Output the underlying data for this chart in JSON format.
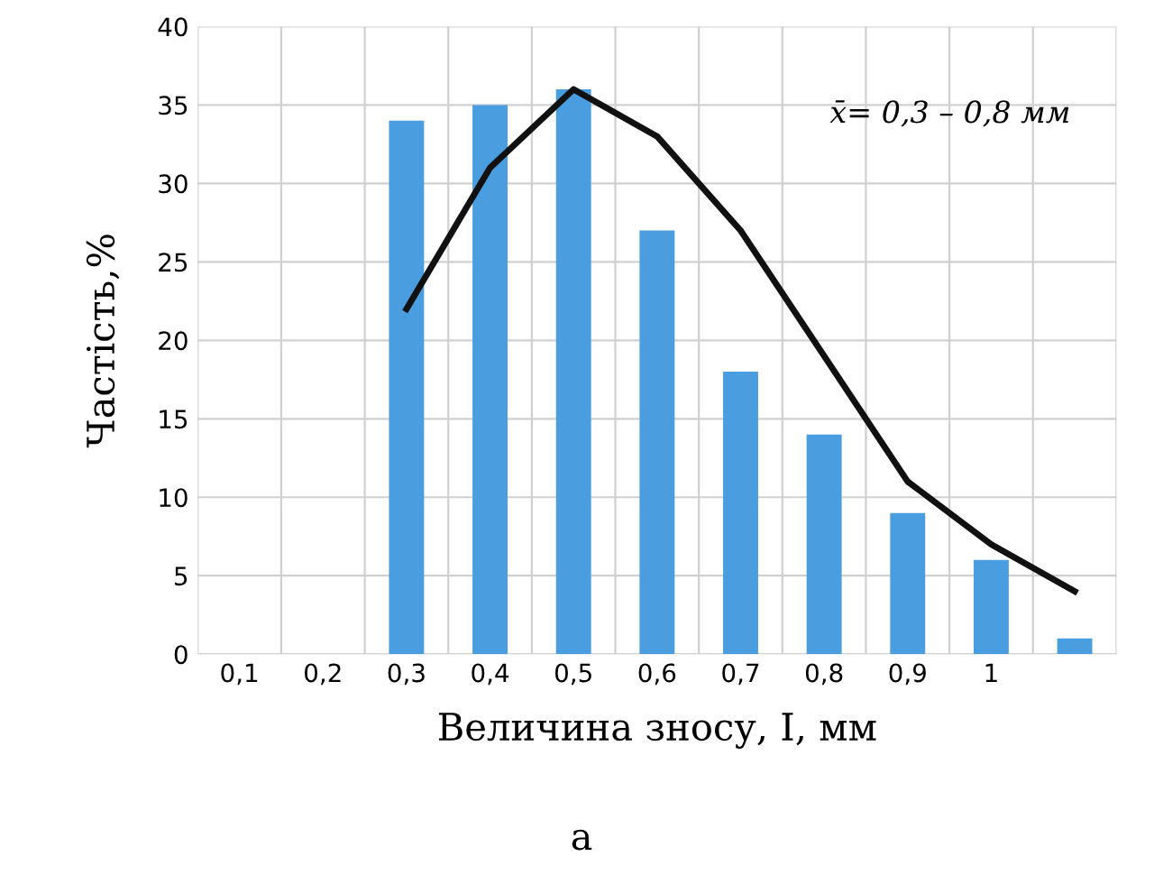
{
  "chart_data": {
    "type": "bar",
    "categories": [
      "0,1",
      "0,2",
      "0,3",
      "0,4",
      "0,5",
      "0,6",
      "0,7",
      "0,8",
      "0,9",
      "1",
      null
    ],
    "series": [
      {
        "color": "#4a9ee0",
        "values": [
          0,
          0,
          34,
          35,
          36,
          27,
          18,
          14,
          9,
          6,
          1
        ]
      },
      {
        "type": "line",
        "color": "#111111",
        "values": [
          null,
          null,
          22,
          31,
          36,
          33,
          27,
          19,
          11,
          7,
          4
        ]
      }
    ],
    "ylim": [
      0,
      40
    ],
    "yticks": [
      0,
      5,
      10,
      15,
      20,
      25,
      30,
      35,
      40
    ],
    "ylabel": "Частість,%",
    "xlabel": "Величина зносу, I, мм",
    "annotations": [
      "x̄= 0,3 – 0,8 мм",
      "а"
    ],
    "grid": true,
    "legend": false
  }
}
